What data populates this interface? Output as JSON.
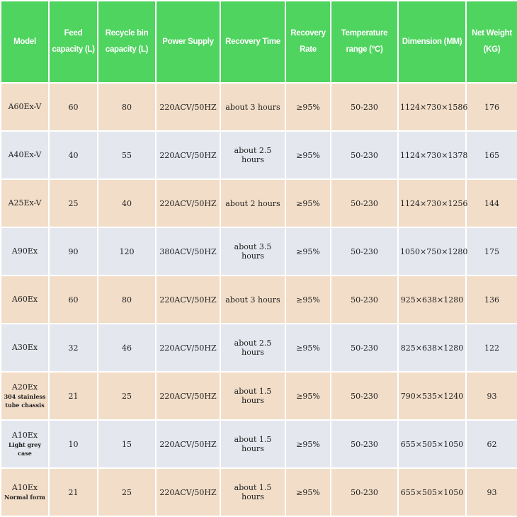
{
  "header": [
    "Model",
    "Feed capacity (L)",
    "Recycle bin capacity (L)",
    "Power Supply",
    "Recovery Time",
    "Recovery Rate",
    "Temperature range (°C)",
    "Dimension (MM)",
    "Net Weight (KG)"
  ],
  "colors": {
    "header": "#4fd45f",
    "row_peach": "#f2ddc8",
    "row_grey": "#e4e7ee"
  },
  "rows": [
    {
      "model": "A60Ex-V",
      "sub": "",
      "feed": "60",
      "bin": "80",
      "power": "220ACV/50HZ",
      "time": "about 3 hours",
      "rate": "≥95%",
      "temp": "50-230",
      "dim": "1124×730×1586",
      "weight": "176"
    },
    {
      "model": "A40Ex-V",
      "sub": "",
      "feed": "40",
      "bin": "55",
      "power": "220ACV/50HZ",
      "time": "about 2.5 hours",
      "rate": "≥95%",
      "temp": "50-230",
      "dim": "1124×730×1378",
      "weight": "165"
    },
    {
      "model": "A25Ex-V",
      "sub": "",
      "feed": "25",
      "bin": "40",
      "power": "220ACV/50HZ",
      "time": "about 2 hours",
      "rate": "≥95%",
      "temp": "50-230",
      "dim": "1124×730×1256",
      "weight": "144"
    },
    {
      "model": "A90Ex",
      "sub": "",
      "feed": "90",
      "bin": "120",
      "power": "380ACV/50HZ",
      "time": "about 3.5 hours",
      "rate": "≥95%",
      "temp": "50-230",
      "dim": "1050×750×1280",
      "weight": "175"
    },
    {
      "model": "A60Ex",
      "sub": "",
      "feed": "60",
      "bin": "80",
      "power": "220ACV/50HZ",
      "time": "about 3 hours",
      "rate": "≥95%",
      "temp": "50-230",
      "dim": "925×638×1280",
      "weight": "136"
    },
    {
      "model": "A30Ex",
      "sub": "",
      "feed": "32",
      "bin": "46",
      "power": "220ACV/50HZ",
      "time": "about 2.5 hours",
      "rate": "≥95%",
      "temp": "50-230",
      "dim": "825×638×1280",
      "weight": "122"
    },
    {
      "model": "A20Ex",
      "sub": "304 stainless tube chassis",
      "feed": "21",
      "bin": "25",
      "power": "220ACV/50HZ",
      "time": "about 1.5 hours",
      "rate": "≥95%",
      "temp": "50-230",
      "dim": "790×535×1240",
      "weight": "93"
    },
    {
      "model": "A10Ex",
      "sub": "Light grey case",
      "feed": "10",
      "bin": "15",
      "power": "220ACV/50HZ",
      "time": "about 1.5 hours",
      "rate": "≥95%",
      "temp": "50-230",
      "dim": "655×505×1050",
      "weight": "62"
    },
    {
      "model": "A10Ex",
      "sub": "Normal form",
      "feed": "21",
      "bin": "25",
      "power": "220ACV/50HZ",
      "time": "about 1.5 hours",
      "rate": "≥95%",
      "temp": "50-230",
      "dim": "655×505×1050",
      "weight": "93"
    }
  ]
}
